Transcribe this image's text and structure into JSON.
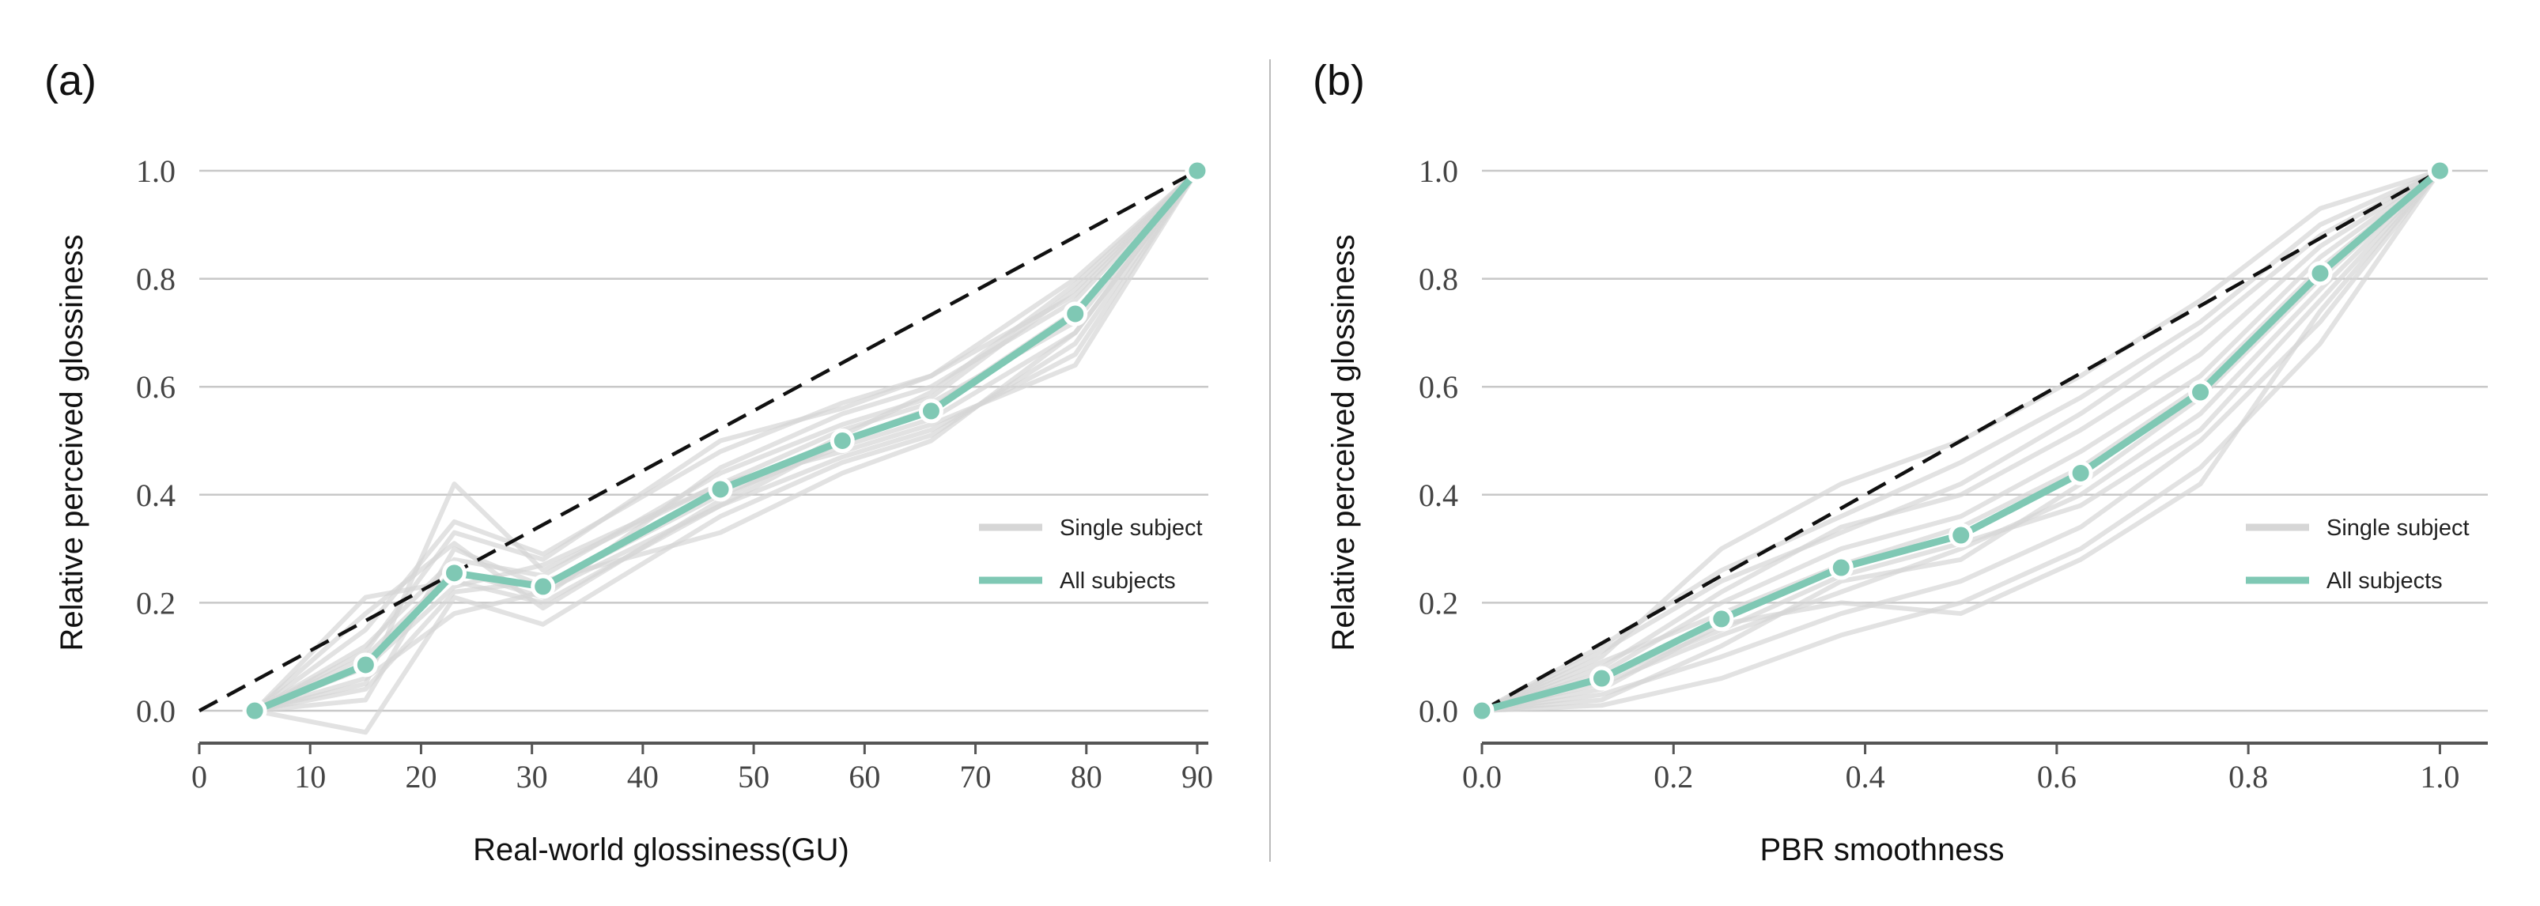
{
  "chart_data": [
    {
      "type": "line",
      "panel_label": "(a)",
      "xlabel": "Real-world glossiness(GU)",
      "ylabel": "Relative perceived glossiness",
      "xlim": [
        0,
        91
      ],
      "ylim": [
        -0.06,
        1.06
      ],
      "x_ticks": [
        0,
        10,
        20,
        30,
        40,
        50,
        60,
        70,
        80,
        90
      ],
      "x_tick_labels": [
        "0",
        "10",
        "20",
        "30",
        "40",
        "50",
        "60",
        "70",
        "80",
        "90"
      ],
      "y_ticks": [
        0.0,
        0.2,
        0.4,
        0.6,
        0.8,
        1.0
      ],
      "y_tick_labels": [
        "0.0",
        "0.2",
        "0.4",
        "0.6",
        "0.8",
        "1.0"
      ],
      "grid": "horizontal",
      "legend_position": "right",
      "legend": [
        "Single subject",
        "All subjects"
      ],
      "reference_line": {
        "x": [
          0,
          90
        ],
        "y": [
          0,
          1
        ]
      },
      "x": [
        5,
        15,
        23,
        31,
        47,
        58,
        66,
        79,
        90
      ],
      "series": [
        {
          "name": "All subjects",
          "values": [
            0.0,
            0.085,
            0.255,
            0.23,
            0.41,
            0.5,
            0.555,
            0.735,
            1.0
          ]
        }
      ],
      "single_subjects": [
        [
          0.0,
          0.05,
          0.42,
          0.26,
          0.42,
          0.52,
          0.57,
          0.72,
          1.0
        ],
        [
          0.0,
          0.21,
          0.24,
          0.2,
          0.38,
          0.47,
          0.52,
          0.66,
          1.0
        ],
        [
          0.0,
          0.12,
          0.28,
          0.25,
          0.44,
          0.53,
          0.58,
          0.78,
          1.0
        ],
        [
          0.0,
          0.02,
          0.3,
          0.23,
          0.4,
          0.49,
          0.54,
          0.7,
          1.0
        ],
        [
          0.0,
          -0.04,
          0.21,
          0.16,
          0.36,
          0.46,
          0.51,
          0.68,
          1.0
        ],
        [
          0.0,
          0.15,
          0.35,
          0.29,
          0.48,
          0.57,
          0.62,
          0.8,
          1.0
        ],
        [
          0.0,
          0.06,
          0.18,
          0.22,
          0.38,
          0.5,
          0.56,
          0.74,
          1.0
        ],
        [
          0.0,
          0.1,
          0.26,
          0.21,
          0.45,
          0.55,
          0.6,
          0.76,
          1.0
        ],
        [
          0.0,
          0.08,
          0.23,
          0.27,
          0.42,
          0.48,
          0.53,
          0.64,
          1.0
        ],
        [
          0.0,
          0.18,
          0.31,
          0.19,
          0.39,
          0.51,
          0.59,
          0.79,
          1.0
        ],
        [
          0.0,
          0.04,
          0.22,
          0.24,
          0.33,
          0.44,
          0.5,
          0.7,
          1.0
        ],
        [
          0.0,
          0.11,
          0.33,
          0.28,
          0.5,
          0.56,
          0.62,
          0.77,
          1.0
        ]
      ]
    },
    {
      "type": "line",
      "panel_label": "(b)",
      "xlabel": "PBR smoothness",
      "ylabel": "Relative perceived glossiness",
      "xlim": [
        0,
        1.05
      ],
      "ylim": [
        -0.06,
        1.06
      ],
      "x_ticks": [
        0.0,
        0.2,
        0.4,
        0.6,
        0.8,
        1.0
      ],
      "x_tick_labels": [
        "0.0",
        "0.2",
        "0.4",
        "0.6",
        "0.8",
        "1.0"
      ],
      "y_ticks": [
        0.0,
        0.2,
        0.4,
        0.6,
        0.8,
        1.0
      ],
      "y_tick_labels": [
        "0.0",
        "0.2",
        "0.4",
        "0.6",
        "0.8",
        "1.0"
      ],
      "grid": "horizontal",
      "legend_position": "right",
      "legend": [
        "Single subject",
        "All subjects"
      ],
      "reference_line": {
        "x": [
          0,
          1
        ],
        "y": [
          0,
          1
        ]
      },
      "x": [
        0.0,
        0.125,
        0.25,
        0.375,
        0.5,
        0.625,
        0.75,
        0.875,
        1.0
      ],
      "series": [
        {
          "name": "All subjects",
          "values": [
            0.0,
            0.06,
            0.17,
            0.265,
            0.325,
            0.44,
            0.59,
            0.81,
            1.0
          ]
        }
      ],
      "single_subjects": [
        [
          0.0,
          0.1,
          0.3,
          0.42,
          0.5,
          0.62,
          0.76,
          0.93,
          1.0
        ],
        [
          0.0,
          0.03,
          0.1,
          0.18,
          0.24,
          0.34,
          0.5,
          0.72,
          1.0
        ],
        [
          0.0,
          0.08,
          0.22,
          0.34,
          0.4,
          0.52,
          0.66,
          0.86,
          1.0
        ],
        [
          0.0,
          0.01,
          0.06,
          0.14,
          0.2,
          0.3,
          0.45,
          0.68,
          1.0
        ],
        [
          0.0,
          0.12,
          0.26,
          0.36,
          0.46,
          0.58,
          0.72,
          0.9,
          1.0
        ],
        [
          0.0,
          0.05,
          0.14,
          0.22,
          0.3,
          0.4,
          0.55,
          0.78,
          1.0
        ],
        [
          0.0,
          0.07,
          0.2,
          0.3,
          0.36,
          0.48,
          0.62,
          0.84,
          1.0
        ],
        [
          0.0,
          0.02,
          0.12,
          0.24,
          0.28,
          0.42,
          0.58,
          0.8,
          1.0
        ],
        [
          0.0,
          0.09,
          0.18,
          0.27,
          0.34,
          0.45,
          0.6,
          0.82,
          1.0
        ],
        [
          0.0,
          0.04,
          0.16,
          0.2,
          0.18,
          0.28,
          0.42,
          0.74,
          1.0
        ],
        [
          0.0,
          0.11,
          0.24,
          0.33,
          0.42,
          0.55,
          0.7,
          0.88,
          1.0
        ],
        [
          0.0,
          0.06,
          0.15,
          0.25,
          0.31,
          0.38,
          0.52,
          0.76,
          1.0
        ]
      ]
    }
  ]
}
